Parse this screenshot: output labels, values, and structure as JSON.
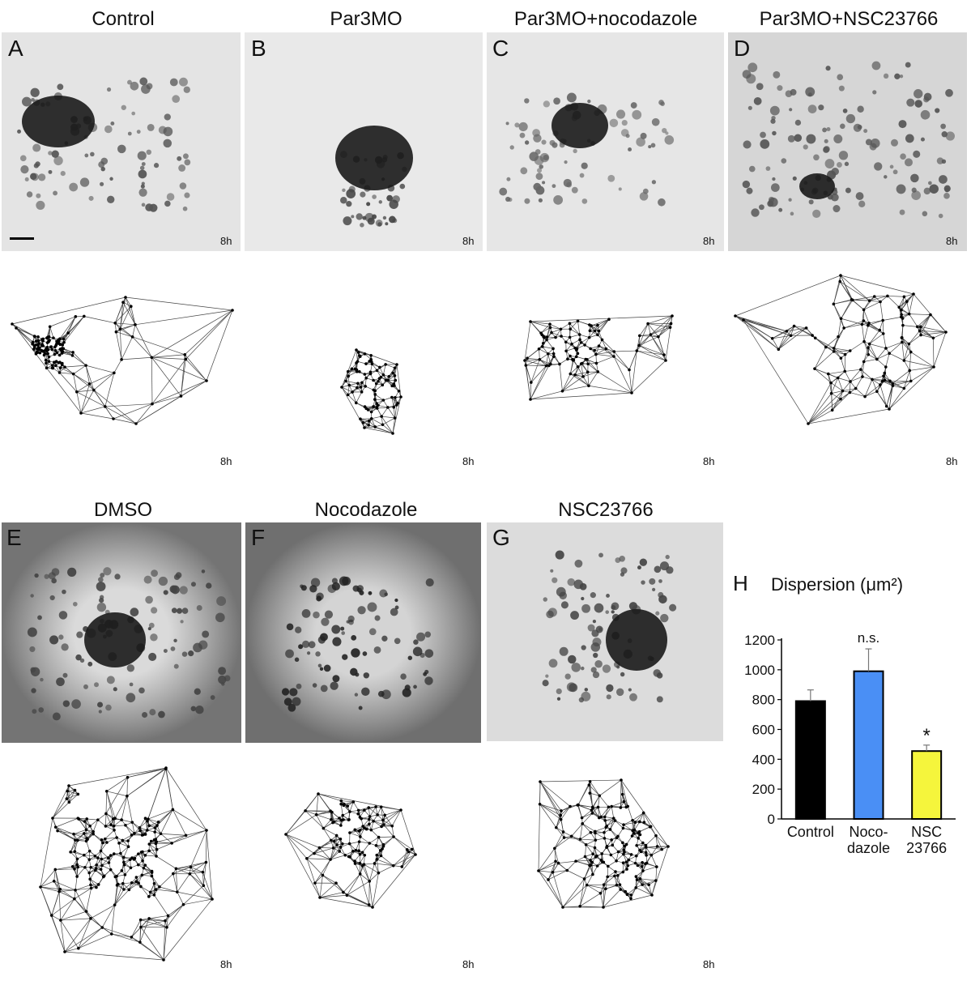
{
  "panels": [
    {
      "letter": "A",
      "title": "Control",
      "time": "8h",
      "bg": "#e4e4e4"
    },
    {
      "letter": "B",
      "title": "Par3MO",
      "time": "8h",
      "bg": "#e9e9e9"
    },
    {
      "letter": "C",
      "title": "Par3MO+nocodazole",
      "time": "8h",
      "bg": "#e6e6e6"
    },
    {
      "letter": "D",
      "title": "Par3MO+NSC23766",
      "time": "8h",
      "bg": "#d6d6d6"
    },
    {
      "letter": "E",
      "title": "DMSO",
      "time": "8h",
      "bg": "#c3c3c3"
    },
    {
      "letter": "F",
      "title": "Nocodazole",
      "time": "8h",
      "bg": "#b8b8b8"
    },
    {
      "letter": "G",
      "title": "NSC23766",
      "time": "8h",
      "bg": "#dcdcdc"
    }
  ],
  "chart_data": {
    "type": "bar",
    "panel_letter": "H",
    "title": "Dispersion (μm²)",
    "categories": [
      "Control",
      "Noco-dazole",
      "NSC 23766"
    ],
    "category_lines": [
      [
        "Control"
      ],
      [
        "Noco-",
        "dazole"
      ],
      [
        "NSC",
        "23766"
      ]
    ],
    "values": [
      790,
      990,
      455
    ],
    "errors": [
      75,
      150,
      40
    ],
    "colors": [
      "#000000",
      "#4a8ff5",
      "#f5f53c"
    ],
    "annotations": [
      "",
      "n.s.",
      "*"
    ],
    "ylim": [
      0,
      1200
    ],
    "yticks": [
      0,
      200,
      400,
      600,
      800,
      1000,
      1200
    ]
  }
}
